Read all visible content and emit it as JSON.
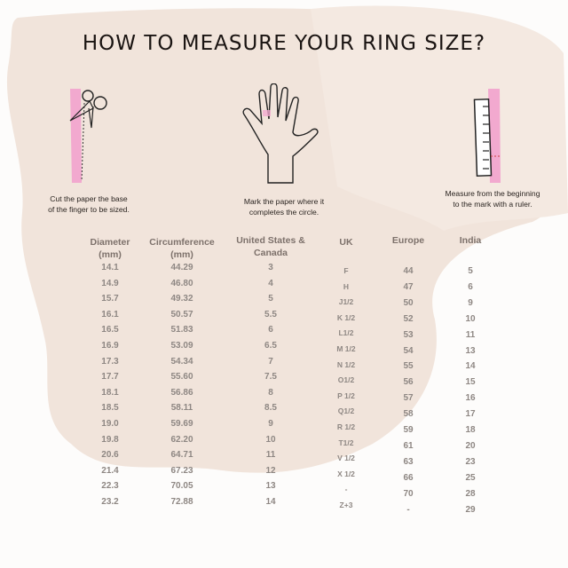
{
  "title": "HOW TO MEASURE YOUR RING SIZE?",
  "colors": {
    "background": "#fdfcfb",
    "brush": "#f1e4db",
    "pink": "#f2a9cf",
    "text": "#1a1412",
    "header": "#7d716b",
    "value": "#8e8783"
  },
  "steps": [
    {
      "icon": "scissors-icon",
      "caption": [
        "Cut the paper the base",
        "of the finger to be sized."
      ]
    },
    {
      "icon": "hand-icon",
      "caption": [
        "Mark the paper where it",
        "completes the circle."
      ]
    },
    {
      "icon": "ruler-icon",
      "caption": [
        "Measure from the beginning",
        "to the mark with a ruler."
      ]
    }
  ],
  "table": {
    "headers": [
      [
        "Diameter",
        "(mm)"
      ],
      [
        "Circumference",
        "(mm)"
      ],
      [
        "United States &",
        "Canada"
      ],
      [
        "UK",
        ""
      ],
      [
        "Europe",
        ""
      ],
      [
        "India",
        ""
      ]
    ],
    "rows": [
      [
        "14.1",
        "44.29",
        "3",
        "F",
        "44",
        "5"
      ],
      [
        "14.9",
        "46.80",
        "4",
        "H",
        "47",
        "6"
      ],
      [
        "15.7",
        "49.32",
        "5",
        "J1/2",
        "50",
        "9"
      ],
      [
        "16.1",
        "50.57",
        "5.5",
        "K 1/2",
        "52",
        "10"
      ],
      [
        "16.5",
        "51.83",
        "6",
        "L1/2",
        "53",
        "11"
      ],
      [
        "16.9",
        "53.09",
        "6.5",
        "M 1/2",
        "54",
        "13"
      ],
      [
        "17.3",
        "54.34",
        "7",
        "N 1/2",
        "55",
        "14"
      ],
      [
        "17.7",
        "55.60",
        "7.5",
        "O1/2",
        "56",
        "15"
      ],
      [
        "18.1",
        "56.86",
        "8",
        "P 1/2",
        "57",
        "16"
      ],
      [
        "18.5",
        "58.11",
        "8.5",
        "Q1/2",
        "58",
        "17"
      ],
      [
        "19.0",
        "59.69",
        "9",
        "R 1/2",
        "59",
        "18"
      ],
      [
        "19.8",
        "62.20",
        "10",
        "T1/2",
        "61",
        "20"
      ],
      [
        "20.6",
        "64.71",
        "11",
        "V 1/2",
        "63",
        "23"
      ],
      [
        "21.4",
        "67.23",
        "12",
        "X 1/2",
        "66",
        "25"
      ],
      [
        "22.3",
        "70.05",
        "13",
        "-",
        "70",
        "28"
      ],
      [
        "23.2",
        "72.88",
        "14",
        "Z+3",
        "-",
        "29"
      ]
    ]
  }
}
